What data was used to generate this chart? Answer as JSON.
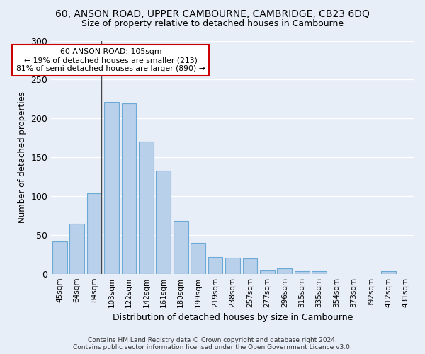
{
  "title_line1": "60, ANSON ROAD, UPPER CAMBOURNE, CAMBRIDGE, CB23 6DQ",
  "title_line2": "Size of property relative to detached houses in Cambourne",
  "xlabel": "Distribution of detached houses by size in Cambourne",
  "ylabel": "Number of detached properties",
  "categories": [
    "45sqm",
    "64sqm",
    "84sqm",
    "103sqm",
    "122sqm",
    "142sqm",
    "161sqm",
    "180sqm",
    "199sqm",
    "219sqm",
    "238sqm",
    "257sqm",
    "277sqm",
    "296sqm",
    "315sqm",
    "335sqm",
    "354sqm",
    "373sqm",
    "392sqm",
    "412sqm",
    "431sqm"
  ],
  "values": [
    42,
    64,
    104,
    221,
    219,
    170,
    133,
    68,
    40,
    22,
    21,
    20,
    4,
    7,
    3,
    3,
    0,
    0,
    0,
    3,
    0
  ],
  "bar_color": "#b8d0ea",
  "bar_edge_color": "#6aaad4",
  "annotation_text": "60 ANSON ROAD: 105sqm\n← 19% of detached houses are smaller (213)\n81% of semi-detached houses are larger (890) →",
  "annotation_box_color": "#ffffff",
  "annotation_border_color": "#cc0000",
  "vline_x_index": 2,
  "ylim": [
    0,
    300
  ],
  "yticks": [
    0,
    50,
    100,
    150,
    200,
    250,
    300
  ],
  "background_color": "#e8eef8",
  "grid_color": "#ffffff",
  "footer_line1": "Contains HM Land Registry data © Crown copyright and database right 2024.",
  "footer_line2": "Contains public sector information licensed under the Open Government Licence v3.0."
}
